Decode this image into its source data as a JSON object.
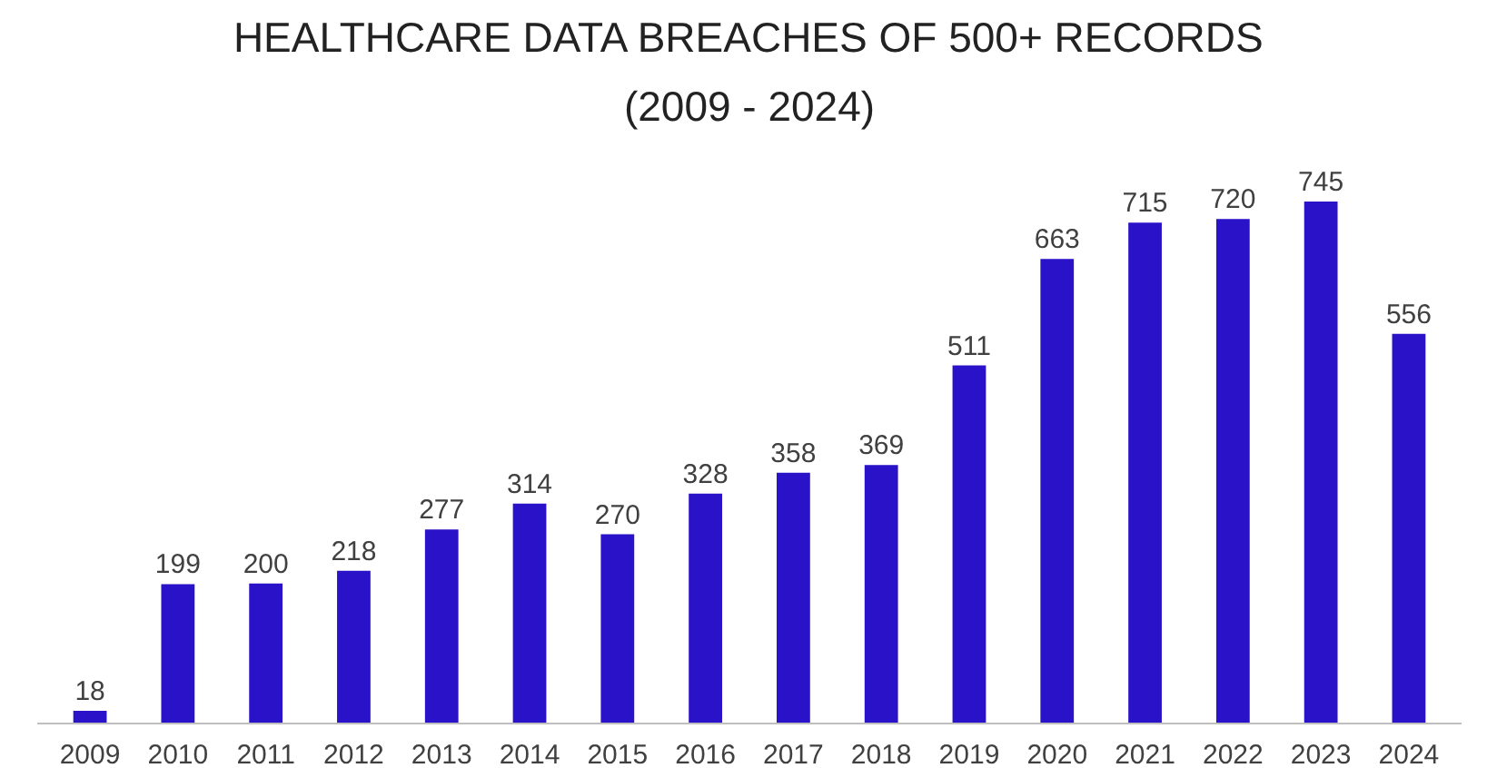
{
  "chart_data": {
    "type": "bar",
    "title": "HEALTHCARE DATA BREACHES OF 500+ RECORDS",
    "subtitle": "(2009 - 2024)",
    "categories": [
      "2009",
      "2010",
      "2011",
      "2012",
      "2013",
      "2014",
      "2015",
      "2016",
      "2017",
      "2018",
      "2019",
      "2020",
      "2021",
      "2022",
      "2023",
      "2024"
    ],
    "values": [
      18,
      199,
      200,
      218,
      277,
      314,
      270,
      328,
      358,
      369,
      511,
      663,
      715,
      720,
      745,
      556
    ],
    "color": "#2a12c8",
    "data_labels": true
  }
}
